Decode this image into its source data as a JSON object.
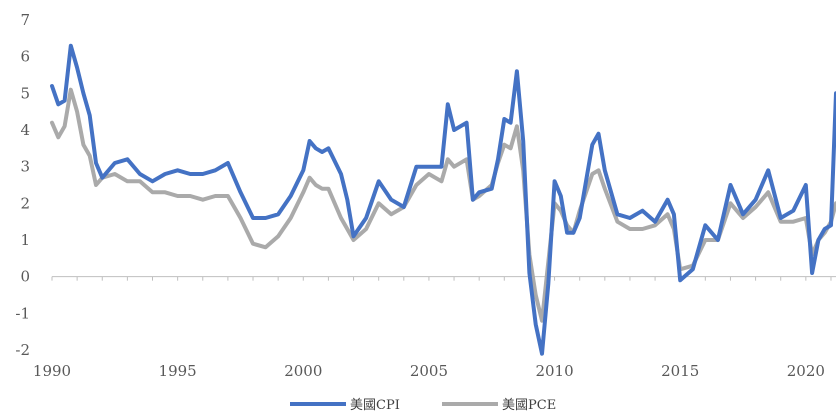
{
  "chart_data": {
    "type": "line",
    "title": "",
    "xlabel": "",
    "ylabel": "",
    "xlim": [
      1990,
      2021.2
    ],
    "ylim": [
      -2,
      7
    ],
    "yticks": [
      -2,
      -1,
      0,
      1,
      2,
      3,
      4,
      5,
      6,
      7
    ],
    "xticks": [
      1990,
      1995,
      2000,
      2005,
      2010,
      2015,
      2020
    ],
    "grid": false,
    "legend": "bottom",
    "series": [
      {
        "name": "美國CPI",
        "color": "#4472C4",
        "x": [
          1990.0,
          1990.25,
          1990.5,
          1990.75,
          1991.0,
          1991.25,
          1991.5,
          1991.75,
          1992.0,
          1992.5,
          1993.0,
          1993.5,
          1994.0,
          1994.5,
          1995.0,
          1995.5,
          1996.0,
          1996.5,
          1997.0,
          1997.5,
          1998.0,
          1998.5,
          1999.0,
          1999.5,
          2000.0,
          2000.25,
          2000.5,
          2000.75,
          2001.0,
          2001.5,
          2001.75,
          2002.0,
          2002.5,
          2003.0,
          2003.5,
          2004.0,
          2004.5,
          2005.0,
          2005.5,
          2005.75,
          2006.0,
          2006.5,
          2006.75,
          2007.0,
          2007.5,
          2007.75,
          2008.0,
          2008.25,
          2008.5,
          2008.75,
          2009.0,
          2009.25,
          2009.5,
          2009.75,
          2010.0,
          2010.25,
          2010.5,
          2010.75,
          2011.0,
          2011.5,
          2011.75,
          2012.0,
          2012.5,
          2013.0,
          2013.5,
          2014.0,
          2014.5,
          2014.75,
          2015.0,
          2015.5,
          2016.0,
          2016.5,
          2017.0,
          2017.5,
          2018.0,
          2018.5,
          2019.0,
          2019.5,
          2020.0,
          2020.25,
          2020.5,
          2020.75,
          2021.0,
          2021.2
        ],
        "values": [
          5.2,
          4.7,
          4.8,
          6.3,
          5.7,
          5.0,
          4.4,
          3.1,
          2.7,
          3.1,
          3.2,
          2.8,
          2.6,
          2.8,
          2.9,
          2.8,
          2.8,
          2.9,
          3.1,
          2.3,
          1.6,
          1.6,
          1.7,
          2.2,
          2.9,
          3.7,
          3.5,
          3.4,
          3.5,
          2.8,
          2.1,
          1.1,
          1.6,
          2.6,
          2.1,
          1.9,
          3.0,
          3.0,
          3.0,
          4.7,
          4.0,
          4.2,
          2.1,
          2.3,
          2.4,
          3.2,
          4.3,
          4.2,
          5.6,
          3.7,
          0.1,
          -1.3,
          -2.1,
          -0.2,
          2.6,
          2.2,
          1.2,
          1.2,
          1.6,
          3.6,
          3.9,
          2.9,
          1.7,
          1.6,
          1.8,
          1.5,
          2.1,
          1.7,
          -0.1,
          0.2,
          1.4,
          1.0,
          2.5,
          1.7,
          2.1,
          2.9,
          1.6,
          1.8,
          2.5,
          0.1,
          1.0,
          1.3,
          1.4,
          5.0
        ]
      },
      {
        "name": "美國PCE",
        "color": "#AAAAAA",
        "x": [
          1990.0,
          1990.25,
          1990.5,
          1990.75,
          1991.0,
          1991.25,
          1991.5,
          1991.75,
          1992.0,
          1992.5,
          1993.0,
          1993.5,
          1994.0,
          1994.5,
          1995.0,
          1995.5,
          1996.0,
          1996.5,
          1997.0,
          1997.5,
          1998.0,
          1998.5,
          1999.0,
          1999.5,
          2000.0,
          2000.25,
          2000.5,
          2000.75,
          2001.0,
          2001.5,
          2001.75,
          2002.0,
          2002.5,
          2003.0,
          2003.5,
          2004.0,
          2004.5,
          2005.0,
          2005.5,
          2005.75,
          2006.0,
          2006.5,
          2006.75,
          2007.0,
          2007.5,
          2007.75,
          2008.0,
          2008.25,
          2008.5,
          2008.75,
          2009.0,
          2009.25,
          2009.5,
          2009.75,
          2010.0,
          2010.25,
          2010.5,
          2010.75,
          2011.0,
          2011.5,
          2011.75,
          2012.0,
          2012.5,
          2013.0,
          2013.5,
          2014.0,
          2014.5,
          2014.75,
          2015.0,
          2015.5,
          2016.0,
          2016.5,
          2017.0,
          2017.5,
          2018.0,
          2018.5,
          2019.0,
          2019.5,
          2020.0,
          2020.25,
          2020.5,
          2020.75,
          2021.0,
          2021.2
        ],
        "values": [
          4.2,
          3.8,
          4.1,
          5.1,
          4.5,
          3.6,
          3.3,
          2.5,
          2.7,
          2.8,
          2.6,
          2.6,
          2.3,
          2.3,
          2.2,
          2.2,
          2.1,
          2.2,
          2.2,
          1.6,
          0.9,
          0.8,
          1.1,
          1.6,
          2.3,
          2.7,
          2.5,
          2.4,
          2.4,
          1.6,
          1.3,
          1.0,
          1.3,
          2.0,
          1.7,
          1.9,
          2.5,
          2.8,
          2.6,
          3.2,
          3.0,
          3.2,
          2.1,
          2.2,
          2.5,
          3.1,
          3.6,
          3.5,
          4.1,
          2.9,
          0.6,
          -0.5,
          -1.2,
          0.4,
          2.0,
          1.8,
          1.4,
          1.2,
          1.8,
          2.8,
          2.9,
          2.4,
          1.5,
          1.3,
          1.3,
          1.4,
          1.7,
          1.3,
          0.2,
          0.3,
          1.0,
          1.0,
          2.0,
          1.6,
          1.9,
          2.3,
          1.5,
          1.5,
          1.6,
          0.6,
          1.0,
          1.2,
          1.5,
          2.0
        ]
      }
    ]
  }
}
